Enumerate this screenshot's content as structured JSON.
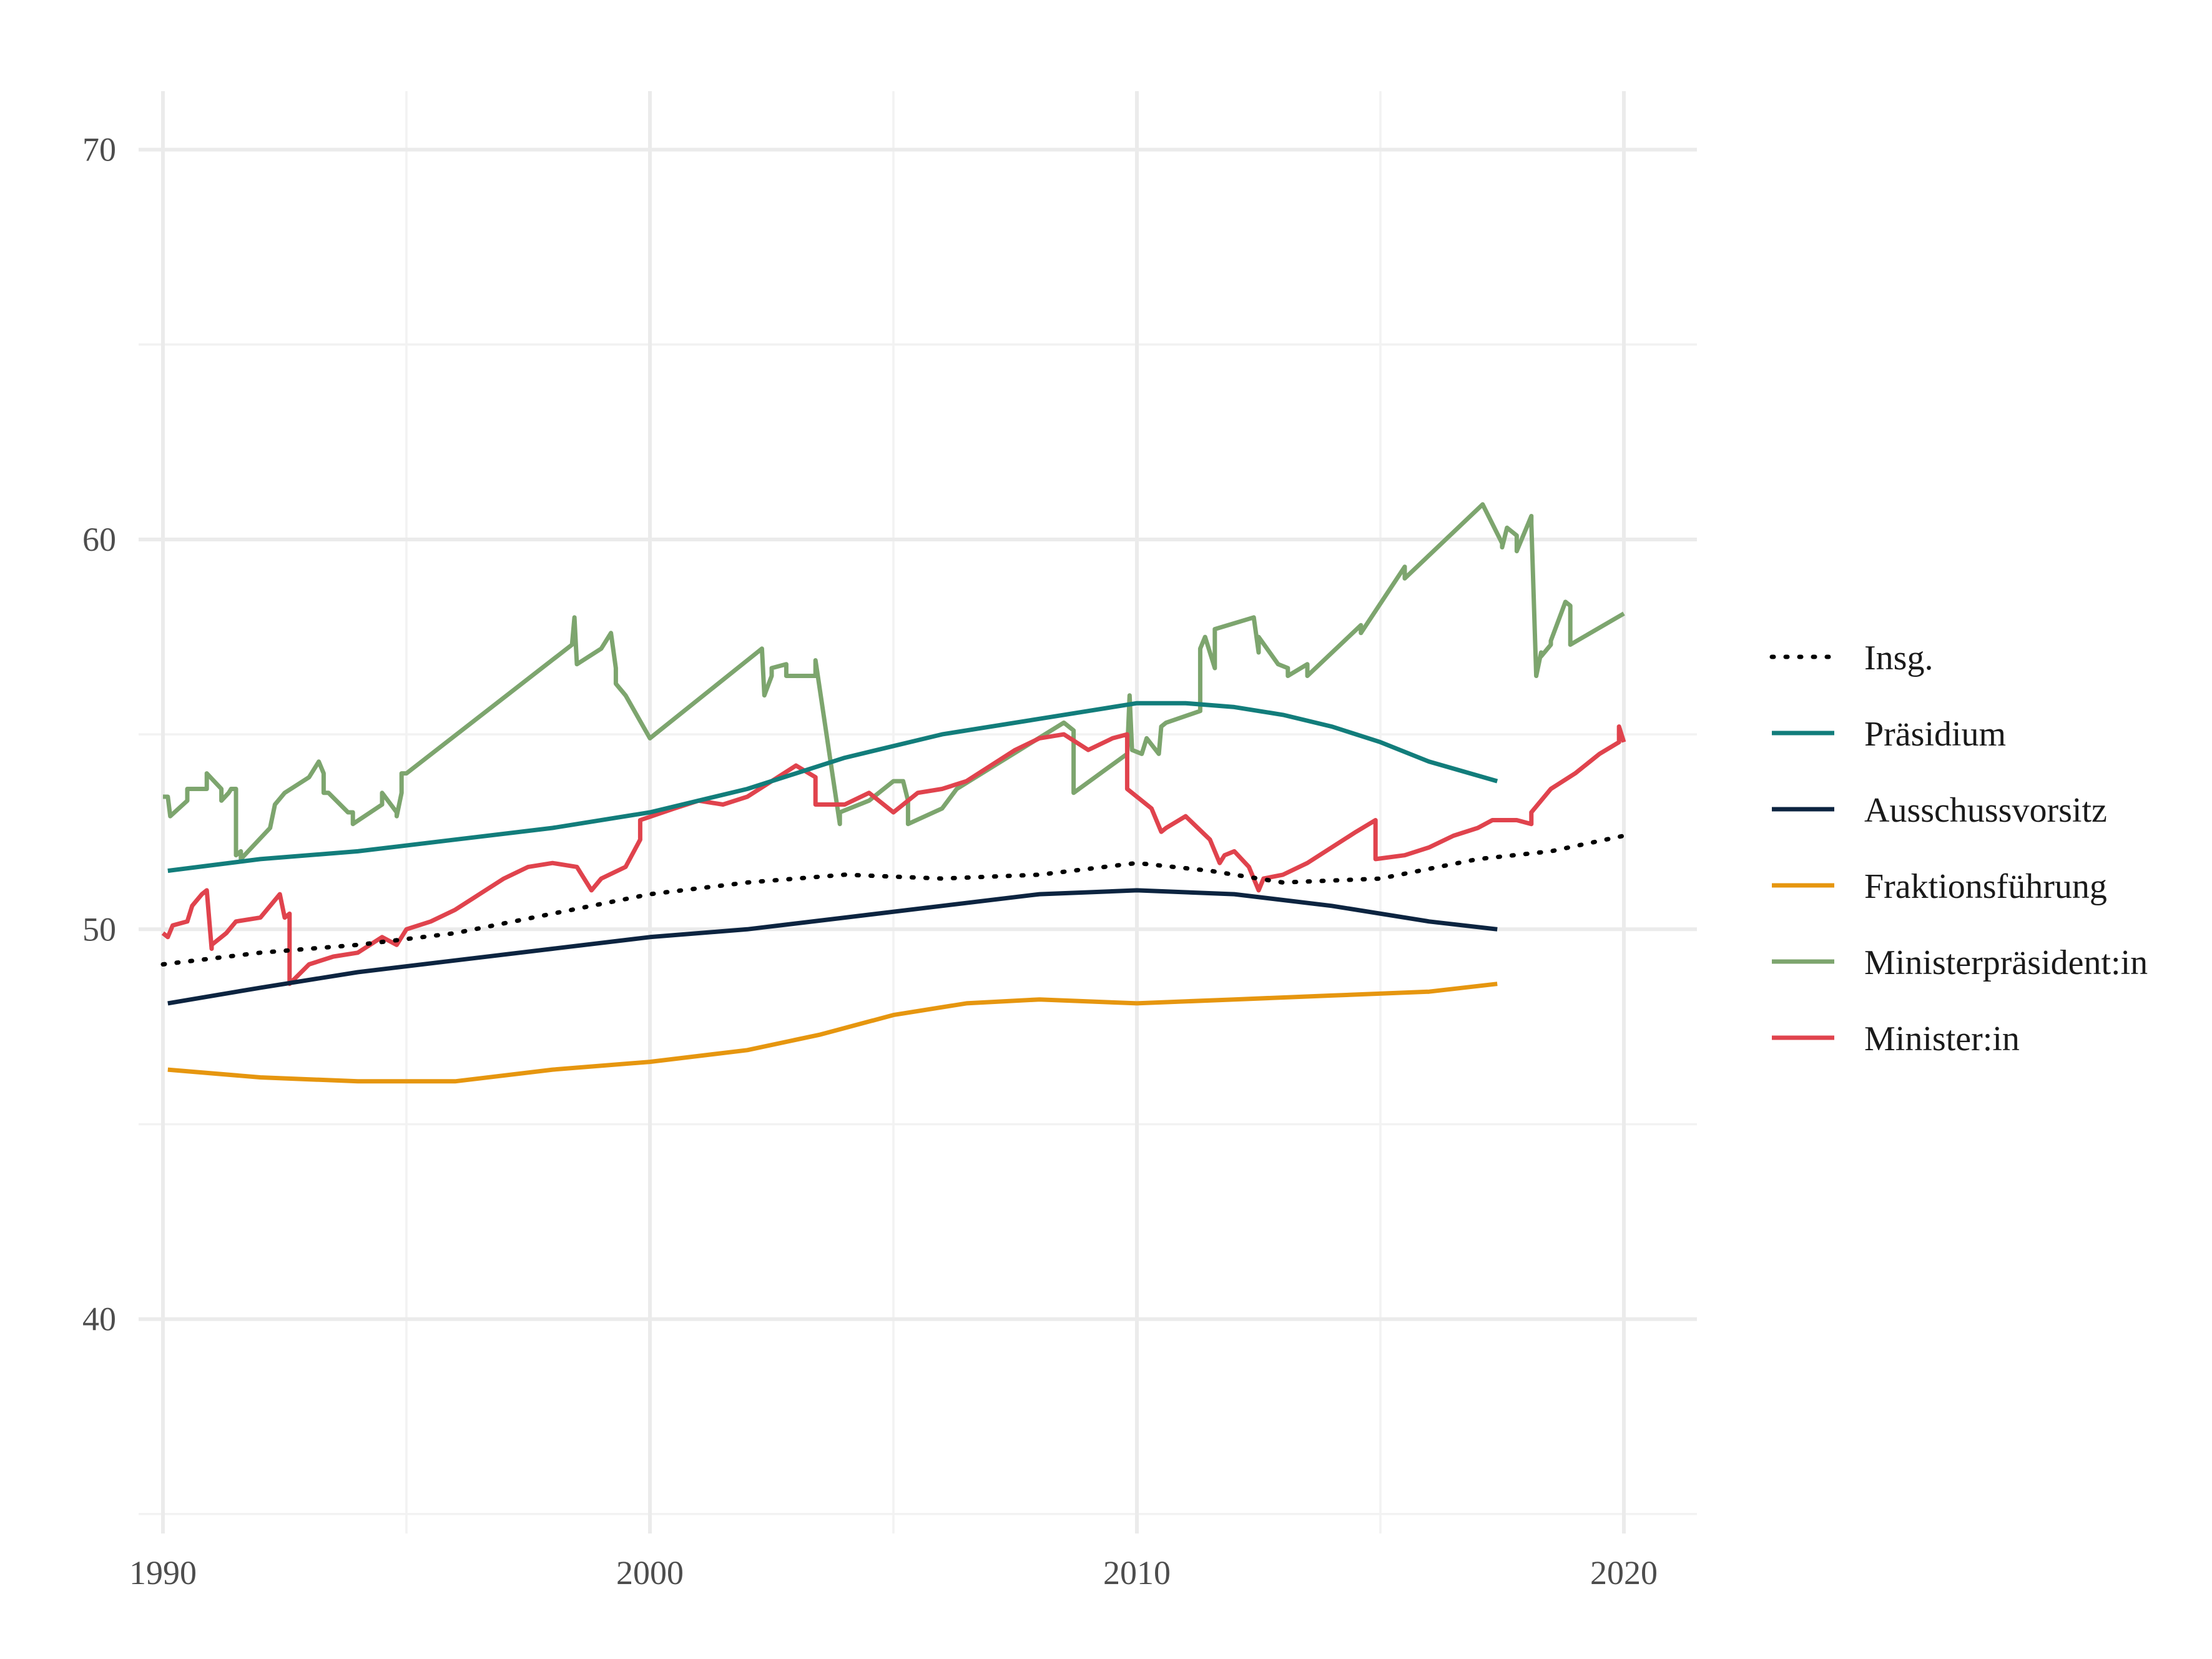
{
  "chart_data": {
    "type": "line",
    "title": "",
    "xlabel": "",
    "ylabel": "",
    "xlim": [
      1989.5,
      2021.5
    ],
    "ylim": [
      34.5,
      71.5
    ],
    "x_ticks": [
      1990,
      2000,
      2010,
      2020
    ],
    "y_ticks": [
      40,
      50,
      60,
      70
    ],
    "grid": true,
    "legend_position": "right",
    "series": [
      {
        "name": "Insg.",
        "color": "#000000",
        "style": "dotted",
        "x": [
          1990.0,
          1992.0,
          1994.0,
          1996.0,
          1998.0,
          2000.0,
          2002.0,
          2004.0,
          2006.0,
          2008.0,
          2010.0,
          2011.5,
          2013.0,
          2015.0,
          2017.0,
          2018.5,
          2020.0
        ],
        "y": [
          49.1,
          49.4,
          49.6,
          49.9,
          50.4,
          50.9,
          51.2,
          51.4,
          51.3,
          51.4,
          51.7,
          51.5,
          51.2,
          51.3,
          51.8,
          52.0,
          52.4
        ]
      },
      {
        "name": "Präsidium",
        "color": "#127d7b",
        "style": "solid",
        "x": [
          1990.1,
          1992.0,
          1994.0,
          1996.0,
          1998.0,
          2000.0,
          2002.0,
          2004.0,
          2006.0,
          2008.0,
          2010.0,
          2011.0,
          2012.0,
          2013.0,
          2014.0,
          2015.0,
          2016.0,
          2017.4
        ],
        "y": [
          51.5,
          51.8,
          52.0,
          52.3,
          52.6,
          53.0,
          53.6,
          54.4,
          55.0,
          55.4,
          55.8,
          55.8,
          55.7,
          55.5,
          55.2,
          54.8,
          54.3,
          53.8
        ]
      },
      {
        "name": "Ausschussvorsitz",
        "color": "#0c2440",
        "style": "solid",
        "x": [
          1990.1,
          1992.0,
          1994.0,
          1996.0,
          1998.0,
          2000.0,
          2002.0,
          2004.0,
          2006.0,
          2008.0,
          2010.0,
          2012.0,
          2014.0,
          2016.0,
          2017.4
        ],
        "y": [
          48.1,
          48.5,
          48.9,
          49.2,
          49.5,
          49.8,
          50.0,
          50.3,
          50.6,
          50.9,
          51.0,
          50.9,
          50.6,
          50.2,
          50.0
        ]
      },
      {
        "name": "Fraktionsführung",
        "color": "#e6960f",
        "style": "solid",
        "x": [
          1990.1,
          1992.0,
          1994.0,
          1996.0,
          1998.0,
          2000.0,
          2002.0,
          2003.5,
          2005.0,
          2006.5,
          2008.0,
          2010.0,
          2012.0,
          2014.0,
          2016.0,
          2017.4
        ],
        "y": [
          46.4,
          46.2,
          46.1,
          46.1,
          46.4,
          46.6,
          46.9,
          47.3,
          47.8,
          48.1,
          48.2,
          48.1,
          48.2,
          48.3,
          48.4,
          48.6
        ]
      },
      {
        "name": "Ministerpräsident:in",
        "color": "#7da56e",
        "style": "solid",
        "x": [
          1990.0,
          1990.1,
          1990.15,
          1990.5,
          1990.5,
          1990.9,
          1990.9,
          1991.2,
          1991.2,
          1991.35,
          1991.4,
          1991.5,
          1991.5,
          1991.6,
          1991.6,
          1991.9,
          1992.2,
          1992.3,
          1992.5,
          1993.0,
          1993.2,
          1993.3,
          1993.3,
          1993.4,
          1993.8,
          1993.9,
          1993.9,
          1994.5,
          1994.5,
          1994.8,
          1994.8,
          1994.9,
          1994.9,
          1995.0,
          1998.4,
          1998.45,
          1998.5,
          1999.0,
          1999.2,
          1999.3,
          1999.3,
          1999.5,
          2000.0,
          2002.3,
          2002.35,
          2002.5,
          2002.5,
          2002.8,
          2002.8,
          2003.4,
          2003.4,
          2003.9,
          2003.9,
          2004.5,
          2004.6,
          2005.0,
          2005.2,
          2005.3,
          2005.3,
          2006.0,
          2006.3,
          2008.5,
          2008.7,
          2008.7,
          2009.8,
          2009.8,
          2009.85,
          2009.9,
          2010.1,
          2010.2,
          2010.45,
          2010.5,
          2010.6,
          2011.3,
          2011.3,
          2011.4,
          2011.6,
          2011.6,
          2012.4,
          2012.5,
          2012.5,
          2012.9,
          2013.1,
          2013.1,
          2013.5,
          2013.5,
          2014.6,
          2014.6,
          2015.5,
          2015.5,
          2017.1,
          2017.5,
          2017.5,
          2017.6,
          2017.8,
          2017.8,
          2018.1,
          2018.1,
          2018.2,
          2018.3,
          2018.3,
          2018.5,
          2018.5,
          2018.8,
          2018.9,
          2018.9,
          2020.0
        ],
        "y": [
          53.4,
          53.4,
          52.9,
          53.3,
          53.6,
          53.6,
          54.0,
          53.6,
          53.3,
          53.5,
          53.6,
          53.6,
          51.9,
          52.0,
          51.8,
          52.2,
          52.6,
          53.2,
          53.5,
          53.9,
          54.3,
          54.0,
          53.5,
          53.5,
          53.0,
          53.0,
          52.7,
          53.2,
          53.5,
          53.0,
          52.9,
          53.5,
          54.0,
          54.0,
          57.3,
          58.0,
          56.8,
          57.2,
          57.6,
          56.7,
          56.3,
          56.0,
          54.9,
          57.2,
          56.0,
          56.5,
          56.7,
          56.8,
          56.5,
          56.5,
          56.9,
          52.7,
          53.0,
          53.3,
          53.4,
          53.8,
          53.8,
          53.3,
          52.7,
          53.1,
          53.6,
          55.3,
          55.1,
          53.5,
          54.5,
          54.5,
          56.0,
          54.6,
          54.5,
          54.9,
          54.5,
          55.2,
          55.3,
          55.6,
          57.2,
          57.5,
          56.7,
          57.7,
          58.0,
          57.1,
          57.5,
          56.8,
          56.7,
          56.5,
          56.8,
          56.5,
          57.8,
          57.6,
          59.3,
          59.0,
          60.9,
          59.9,
          59.8,
          60.3,
          60.1,
          59.7,
          60.6,
          60.4,
          56.5,
          57.1,
          57.0,
          57.3,
          57.4,
          58.4,
          58.3,
          57.3,
          58.1
        ]
      },
      {
        "name": "Minister:in",
        "color": "#e0434d",
        "style": "solid",
        "x": [
          1990.0,
          1990.1,
          1990.2,
          1990.5,
          1990.6,
          1990.8,
          1990.9,
          1991.0,
          1991.0,
          1991.3,
          1991.5,
          1992.0,
          1992.4,
          1992.5,
          1992.6,
          1992.6,
          1993.0,
          1993.5,
          1994.0,
          1994.5,
          1994.8,
          1995.0,
          1995.5,
          1996.0,
          1996.5,
          1997.0,
          1997.5,
          1998.0,
          1998.5,
          1998.8,
          1999.0,
          1999.5,
          1999.8,
          1999.8,
          2000.5,
          2001.0,
          2001.5,
          2002.0,
          2002.5,
          2003.0,
          2003.4,
          2003.4,
          2004.0,
          2004.5,
          2005.0,
          2005.5,
          2006.0,
          2006.5,
          2007.0,
          2007.5,
          2008.0,
          2008.5,
          2009.0,
          2009.5,
          2009.8,
          2009.8,
          2010.3,
          2010.5,
          2010.6,
          2011.0,
          2011.5,
          2011.7,
          2011.8,
          2012.0,
          2012.3,
          2012.5,
          2012.6,
          2013.0,
          2013.5,
          2014.0,
          2014.5,
          2014.9,
          2014.9,
          2015.5,
          2016.0,
          2016.5,
          2017.0,
          2017.3,
          2017.8,
          2018.1,
          2018.1,
          2018.5,
          2019.0,
          2019.5,
          2019.9,
          2019.9,
          2020.0
        ],
        "y": [
          49.9,
          49.8,
          50.1,
          50.2,
          50.6,
          50.9,
          51.0,
          49.5,
          49.6,
          49.9,
          50.2,
          50.3,
          50.9,
          50.3,
          50.4,
          48.6,
          49.1,
          49.3,
          49.4,
          49.8,
          49.6,
          50.0,
          50.2,
          50.5,
          50.9,
          51.3,
          51.6,
          51.7,
          51.6,
          51.0,
          51.3,
          51.6,
          52.3,
          52.8,
          53.1,
          53.3,
          53.2,
          53.4,
          53.8,
          54.2,
          53.9,
          53.2,
          53.2,
          53.5,
          53.0,
          53.5,
          53.6,
          53.8,
          54.2,
          54.6,
          54.9,
          55.0,
          54.6,
          54.9,
          55.0,
          53.6,
          53.1,
          52.5,
          52.6,
          52.9,
          52.3,
          51.7,
          51.9,
          52.0,
          51.6,
          51.0,
          51.3,
          51.4,
          51.7,
          52.1,
          52.5,
          52.8,
          51.8,
          51.9,
          52.1,
          52.4,
          52.6,
          52.8,
          52.8,
          52.7,
          53.0,
          53.6,
          54.0,
          54.5,
          54.8,
          55.2,
          54.8
        ]
      }
    ]
  }
}
